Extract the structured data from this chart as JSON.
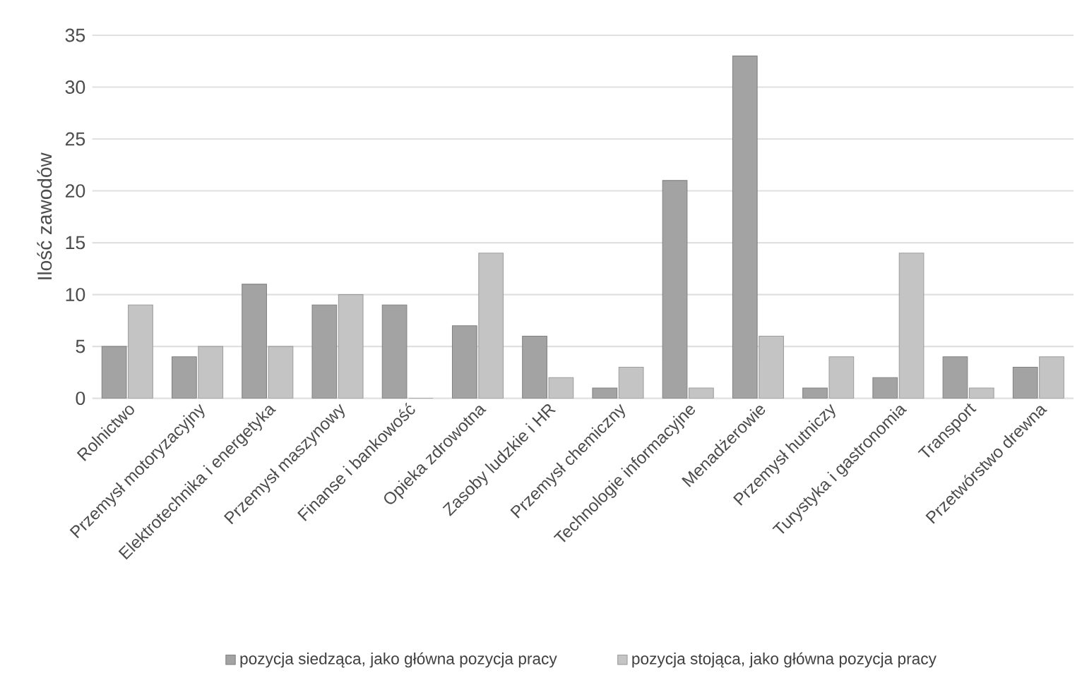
{
  "chart_data": {
    "type": "bar",
    "ylabel": "Ilość zawodów",
    "categories": [
      "Rolnictwo",
      "Przemysł motoryzacyjny",
      "Elektrotechnika i energetyka",
      "Przemysł maszynowy",
      "Finanse i bankowość",
      "Opieka zdrowotna",
      "Zasoby ludzkie i HR",
      "Przemysł chemiczny",
      "Technologie informacyjne",
      "Menadżerowie",
      "Przemysł hutniczy",
      "Turystyka i gastronomia",
      "Transport",
      "Przetwórstwo drewna"
    ],
    "series": [
      {
        "name": "pozycja siedząca, jako główna pozycja pracy",
        "color": "#a3a3a3",
        "values": [
          5,
          4,
          11,
          9,
          9,
          7,
          6,
          1,
          21,
          33,
          1,
          2,
          4,
          3
        ]
      },
      {
        "name": "pozycja stojąca, jako główna pozycja pracy",
        "color": "#c4c4c4",
        "values": [
          9,
          5,
          5,
          10,
          0,
          14,
          2,
          3,
          1,
          6,
          4,
          14,
          1,
          4
        ]
      }
    ],
    "ylim": [
      0,
      35
    ],
    "yticks": [
      0,
      5,
      10,
      15,
      20,
      25,
      30,
      35
    ],
    "grid": "y",
    "legend": "bottom"
  }
}
